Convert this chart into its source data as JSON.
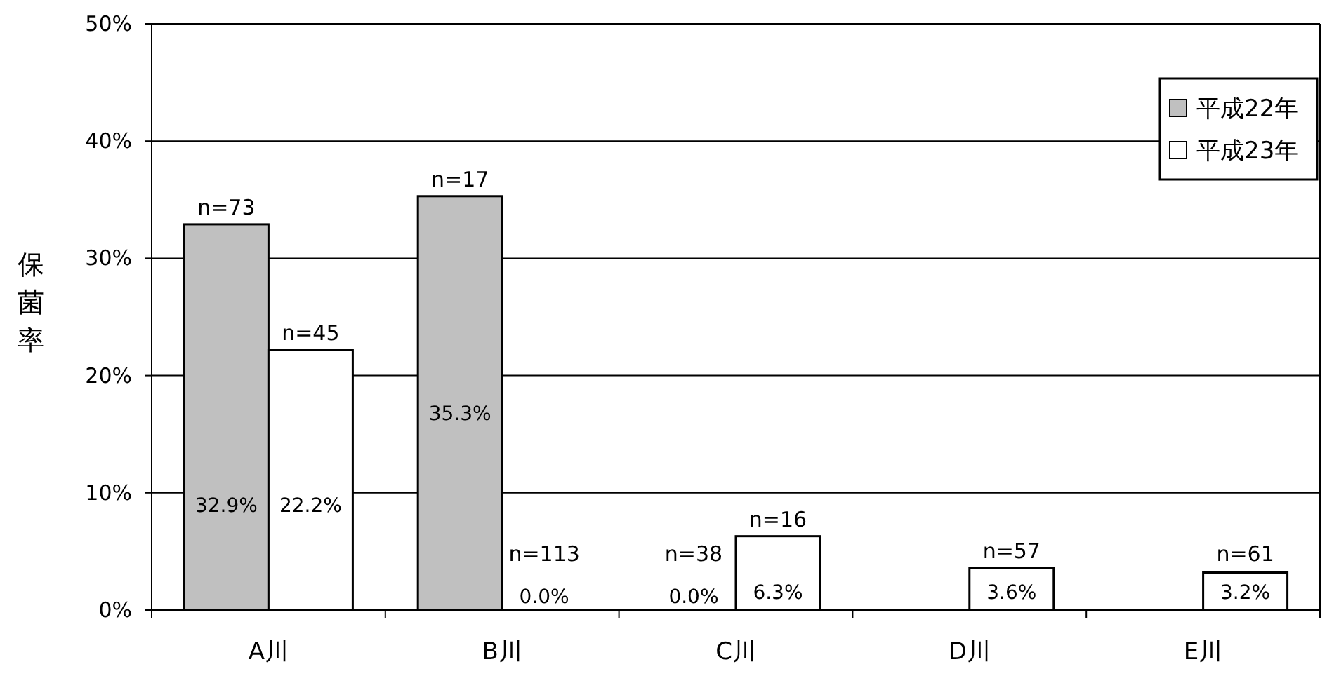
{
  "chart_data": {
    "type": "bar",
    "ylabel": "保菌率",
    "categories": [
      "A川",
      "B川",
      "C川",
      "D川",
      "E川"
    ],
    "series": [
      {
        "name": "平成22年",
        "color": "#c0c0c0",
        "values": [
          32.9,
          35.3,
          0.0,
          null,
          null
        ],
        "value_labels": [
          "32.9%",
          "35.3%",
          "0.0%",
          null,
          null
        ]
      },
      {
        "name": "平成23年",
        "color": "#ffffff",
        "values": [
          22.2,
          0.0,
          6.3,
          3.6,
          3.2
        ],
        "value_labels": [
          "22.2%",
          "0.0%",
          "6.3%",
          "3.6%",
          "3.2%"
        ]
      }
    ],
    "ylim": [
      0,
      50
    ],
    "yticks": [
      {
        "value": 0,
        "label": "0%"
      },
      {
        "value": 10,
        "label": "10%"
      },
      {
        "value": 20,
        "label": "20%"
      },
      {
        "value": 30,
        "label": "30%"
      },
      {
        "value": 40,
        "label": "40%"
      },
      {
        "value": 50,
        "label": "50%"
      }
    ],
    "grid": "y",
    "legend": "top right",
    "annotations": [
      {
        "text": "n=73",
        "x": "A川",
        "y": 32.9
      },
      {
        "text": "n=45",
        "x": "A川",
        "y": 22.2
      },
      {
        "text": "n=17",
        "x": "B川",
        "y": 35.3
      },
      {
        "text": "n=113",
        "x": "B川",
        "y": 0.0
      },
      {
        "text": "n=38",
        "x": "C川",
        "y": 0.0
      },
      {
        "text": "n=16",
        "x": "C川",
        "y": 6.3
      },
      {
        "text": "n=57",
        "x": "D川",
        "y": 3.6
      },
      {
        "text": "n=61",
        "x": "E川",
        "y": 3.2
      }
    ]
  }
}
